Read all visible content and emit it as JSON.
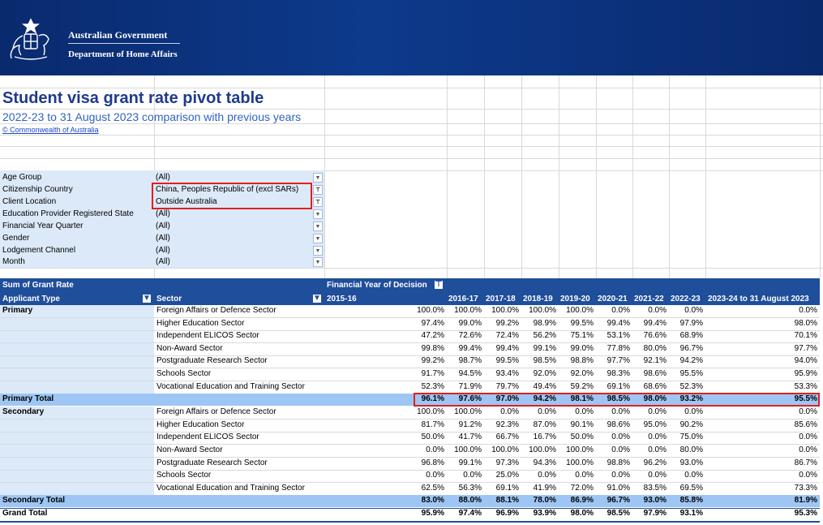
{
  "header": {
    "org": "Australian Government",
    "department": "Department of Home Affairs"
  },
  "title": "Student visa grant rate pivot table",
  "subtitle": "2022-23 to 31 August 2023 comparison with previous years",
  "copyright": "© Commonwealth of Australia",
  "filters": [
    {
      "label": "Age Group",
      "value": "(All)"
    },
    {
      "label": "Citizenship Country",
      "value": "China, Peoples Republic of (excl SARs)"
    },
    {
      "label": "Client Location",
      "value": "Outside Australia"
    },
    {
      "label": "Education Provider Registered State",
      "value": "(All)"
    },
    {
      "label": "Financial Year Quarter",
      "value": "(All)"
    },
    {
      "label": "Gender",
      "value": "(All)"
    },
    {
      "label": "Lodgement Channel",
      "value": "(All)"
    },
    {
      "label": "Month",
      "value": "(All)"
    }
  ],
  "pivot": {
    "measure": "Sum of Grant Rate",
    "col_field": "Financial Year of Decision",
    "row_field1": "Applicant Type",
    "row_field2": "Sector",
    "years": [
      "2015-16",
      "2016-17",
      "2017-18",
      "2018-19",
      "2019-20",
      "2020-21",
      "2021-22",
      "2022-23",
      "2023-24 to 31 August 2023"
    ],
    "groups": [
      {
        "name": "Primary",
        "rows": [
          {
            "sector": "Foreign Affairs or Defence Sector",
            "values": [
              "100.0%",
              "100.0%",
              "100.0%",
              "100.0%",
              "100.0%",
              "0.0%",
              "0.0%",
              "0.0%",
              "0.0%"
            ]
          },
          {
            "sector": "Higher Education Sector",
            "values": [
              "97.4%",
              "99.0%",
              "99.2%",
              "98.9%",
              "99.5%",
              "99.4%",
              "99.4%",
              "97.9%",
              "98.0%"
            ]
          },
          {
            "sector": "Independent ELICOS Sector",
            "values": [
              "47.2%",
              "72.6%",
              "72.4%",
              "56.2%",
              "75.1%",
              "53.1%",
              "76.6%",
              "68.9%",
              "70.1%"
            ]
          },
          {
            "sector": "Non-Award Sector",
            "values": [
              "99.8%",
              "99.4%",
              "99.4%",
              "99.1%",
              "99.0%",
              "77.8%",
              "80.0%",
              "96.7%",
              "97.7%"
            ]
          },
          {
            "sector": "Postgraduate Research Sector",
            "values": [
              "99.2%",
              "98.7%",
              "99.5%",
              "98.5%",
              "98.8%",
              "97.7%",
              "92.1%",
              "94.2%",
              "94.0%"
            ]
          },
          {
            "sector": "Schools Sector",
            "values": [
              "91.7%",
              "94.5%",
              "93.4%",
              "92.0%",
              "92.0%",
              "98.3%",
              "98.6%",
              "95.5%",
              "95.9%"
            ]
          },
          {
            "sector": "Vocational Education and Training Sector",
            "values": [
              "52.3%",
              "71.9%",
              "79.7%",
              "49.4%",
              "59.2%",
              "69.1%",
              "68.6%",
              "52.3%",
              "53.3%"
            ]
          }
        ],
        "total_label": "Primary Total",
        "total": [
          "96.1%",
          "97.6%",
          "97.0%",
          "94.2%",
          "98.1%",
          "98.5%",
          "98.0%",
          "93.2%",
          "95.5%"
        ]
      },
      {
        "name": "Secondary",
        "rows": [
          {
            "sector": "Foreign Affairs or Defence Sector",
            "values": [
              "100.0%",
              "100.0%",
              "0.0%",
              "0.0%",
              "0.0%",
              "0.0%",
              "0.0%",
              "0.0%",
              "0.0%"
            ]
          },
          {
            "sector": "Higher Education Sector",
            "values": [
              "81.7%",
              "91.2%",
              "92.3%",
              "87.0%",
              "90.1%",
              "98.6%",
              "95.0%",
              "90.2%",
              "85.6%"
            ]
          },
          {
            "sector": "Independent ELICOS Sector",
            "values": [
              "50.0%",
              "41.7%",
              "66.7%",
              "16.7%",
              "50.0%",
              "0.0%",
              "0.0%",
              "75.0%",
              "0.0%"
            ]
          },
          {
            "sector": "Non-Award Sector",
            "values": [
              "0.0%",
              "100.0%",
              "100.0%",
              "100.0%",
              "100.0%",
              "0.0%",
              "0.0%",
              "80.0%",
              "0.0%"
            ]
          },
          {
            "sector": "Postgraduate Research Sector",
            "values": [
              "96.8%",
              "99.1%",
              "97.3%",
              "94.3%",
              "100.0%",
              "98.8%",
              "96.2%",
              "93.0%",
              "86.7%"
            ]
          },
          {
            "sector": "Schools Sector",
            "values": [
              "0.0%",
              "0.0%",
              "25.0%",
              "0.0%",
              "0.0%",
              "0.0%",
              "0.0%",
              "0.0%",
              "0.0%"
            ]
          },
          {
            "sector": "Vocational Education and Training Sector",
            "values": [
              "62.5%",
              "56.3%",
              "69.1%",
              "41.9%",
              "72.0%",
              "91.0%",
              "83.5%",
              "69.5%",
              "73.3%"
            ]
          }
        ],
        "total_label": "Secondary Total",
        "total": [
          "83.0%",
          "88.0%",
          "88.1%",
          "78.0%",
          "86.9%",
          "96.7%",
          "93.0%",
          "85.8%",
          "81.9%"
        ]
      }
    ],
    "grand_total_label": "Grand Total",
    "grand_total": [
      "95.9%",
      "97.4%",
      "96.9%",
      "93.9%",
      "98.0%",
      "98.5%",
      "97.9%",
      "93.1%",
      "95.3%"
    ]
  }
}
